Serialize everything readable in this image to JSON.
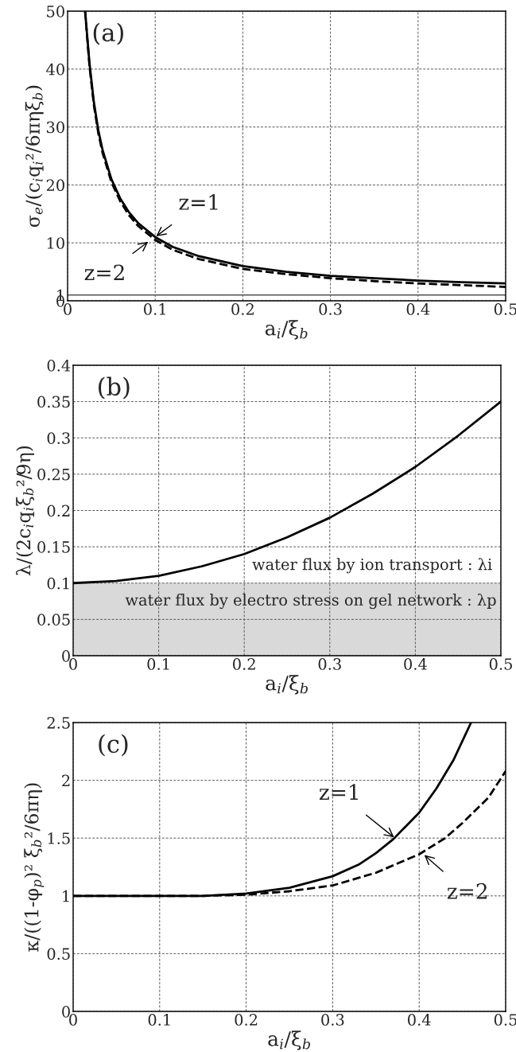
{
  "chart_data": [
    {
      "type": "line",
      "title": "(a)",
      "xlabel": "a$_{i}$/ξ$_{b}$",
      "ylabel": "σ$_{e}$/(c$_{i}$q$_{i}$²/6πηξ$_{b}$)",
      "xlim": [
        0,
        0.5
      ],
      "ylim": [
        0,
        50
      ],
      "xticks": [
        0,
        0.1,
        0.2,
        0.3,
        0.4,
        0.5
      ],
      "yticks": [
        0,
        1,
        10,
        20,
        30,
        40,
        50
      ],
      "grid": true,
      "series": [
        {
          "color": "#000000",
          "line_style": "solid",
          "x": [
            0.02,
            0.025,
            0.03,
            0.035,
            0.04,
            0.05,
            0.06,
            0.07,
            0.08,
            0.1,
            0.12,
            0.15,
            0.2,
            0.25,
            0.3,
            0.35,
            0.4,
            0.45,
            0.5
          ],
          "values": [
            50,
            41,
            34.3,
            29.5,
            26,
            21,
            17.7,
            15.3,
            13.5,
            11,
            9.3,
            7.7,
            6,
            5,
            4.3,
            3.9,
            3.5,
            3.2,
            3
          ]
        },
        {
          "color": "#000000",
          "line_style": "dashed",
          "x": [
            0.02,
            0.025,
            0.03,
            0.035,
            0.04,
            0.05,
            0.06,
            0.07,
            0.08,
            0.1,
            0.12,
            0.15,
            0.2,
            0.25,
            0.3,
            0.35,
            0.4,
            0.45,
            0.5
          ],
          "values": [
            50,
            40.5,
            33.8,
            29,
            25.5,
            20.5,
            17.2,
            14.8,
            13,
            10.5,
            8.8,
            7.2,
            5.5,
            4.6,
            3.9,
            3.4,
            3.0,
            2.7,
            2.4
          ]
        }
      ],
      "ref_lines": [
        {
          "axis": "y",
          "value": 1,
          "color": "#000000",
          "line_style": "solid"
        }
      ],
      "annotations": [
        {
          "text": "z=1",
          "x": 0.1,
          "y": 11
        },
        {
          "text": "z=2",
          "x": 0.093,
          "y": 10.3
        }
      ]
    },
    {
      "type": "line",
      "title": "(b)",
      "xlabel": "a$_{i}$/ξ$_{b}$",
      "ylabel": "λ/(2c$_{i}$q$_{i}$ξ$_{b}$²/9η)",
      "xlim": [
        0,
        0.5
      ],
      "ylim": [
        0,
        0.4
      ],
      "xticks": [
        0,
        0.1,
        0.2,
        0.3,
        0.4,
        0.5
      ],
      "yticks": [
        0,
        0.05,
        0.1,
        0.15,
        0.2,
        0.25,
        0.3,
        0.35,
        0.4
      ],
      "grid": true,
      "series": [
        {
          "color": "#000000",
          "line_style": "solid",
          "x": [
            0,
            0.05,
            0.1,
            0.15,
            0.2,
            0.25,
            0.3,
            0.35,
            0.4,
            0.45,
            0.5
          ],
          "values": [
            0.1,
            0.103,
            0.11,
            0.123,
            0.14,
            0.163,
            0.19,
            0.223,
            0.26,
            0.303,
            0.35
          ]
        }
      ],
      "bands": [
        {
          "axis": "y",
          "from": 0,
          "to": 0.1,
          "color": "#d9d9d9",
          "label": "water flux by electro stress on gel network : λp"
        }
      ],
      "annotations": [
        "water flux by ion transport : λi"
      ]
    },
    {
      "type": "line",
      "title": "(c)",
      "xlabel": "a$_{i}$/ξ$_{b}$",
      "ylabel": "κ/((1-φ$_{p}$)² ξ$_{b}$²/6πη)",
      "xlim": [
        0,
        0.5
      ],
      "ylim": [
        0,
        2.5
      ],
      "xticks": [
        0,
        0.1,
        0.2,
        0.3,
        0.4,
        0.5
      ],
      "yticks": [
        0,
        0.5,
        1,
        1.5,
        2,
        2.5
      ],
      "grid": true,
      "series": [
        {
          "color": "#000000",
          "line_style": "solid",
          "x": [
            0,
            0.1,
            0.15,
            0.2,
            0.25,
            0.3,
            0.33,
            0.35,
            0.37,
            0.4,
            0.42,
            0.44,
            0.46
          ],
          "values": [
            1,
            1,
            1.0,
            1.02,
            1.07,
            1.17,
            1.27,
            1.37,
            1.49,
            1.72,
            1.93,
            2.18,
            2.5
          ]
        },
        {
          "color": "#000000",
          "line_style": "dashed",
          "x": [
            0,
            0.1,
            0.15,
            0.2,
            0.25,
            0.3,
            0.35,
            0.4,
            0.43,
            0.45,
            0.48,
            0.5
          ],
          "values": [
            1,
            1,
            1.0,
            1.01,
            1.04,
            1.09,
            1.2,
            1.36,
            1.5,
            1.63,
            1.85,
            2.08
          ]
        }
      ],
      "annotations": [
        {
          "text": "z=1",
          "x": 0.372,
          "y": 1.5
        },
        {
          "text": "z=2",
          "x": 0.405,
          "y": 1.36
        }
      ]
    }
  ]
}
